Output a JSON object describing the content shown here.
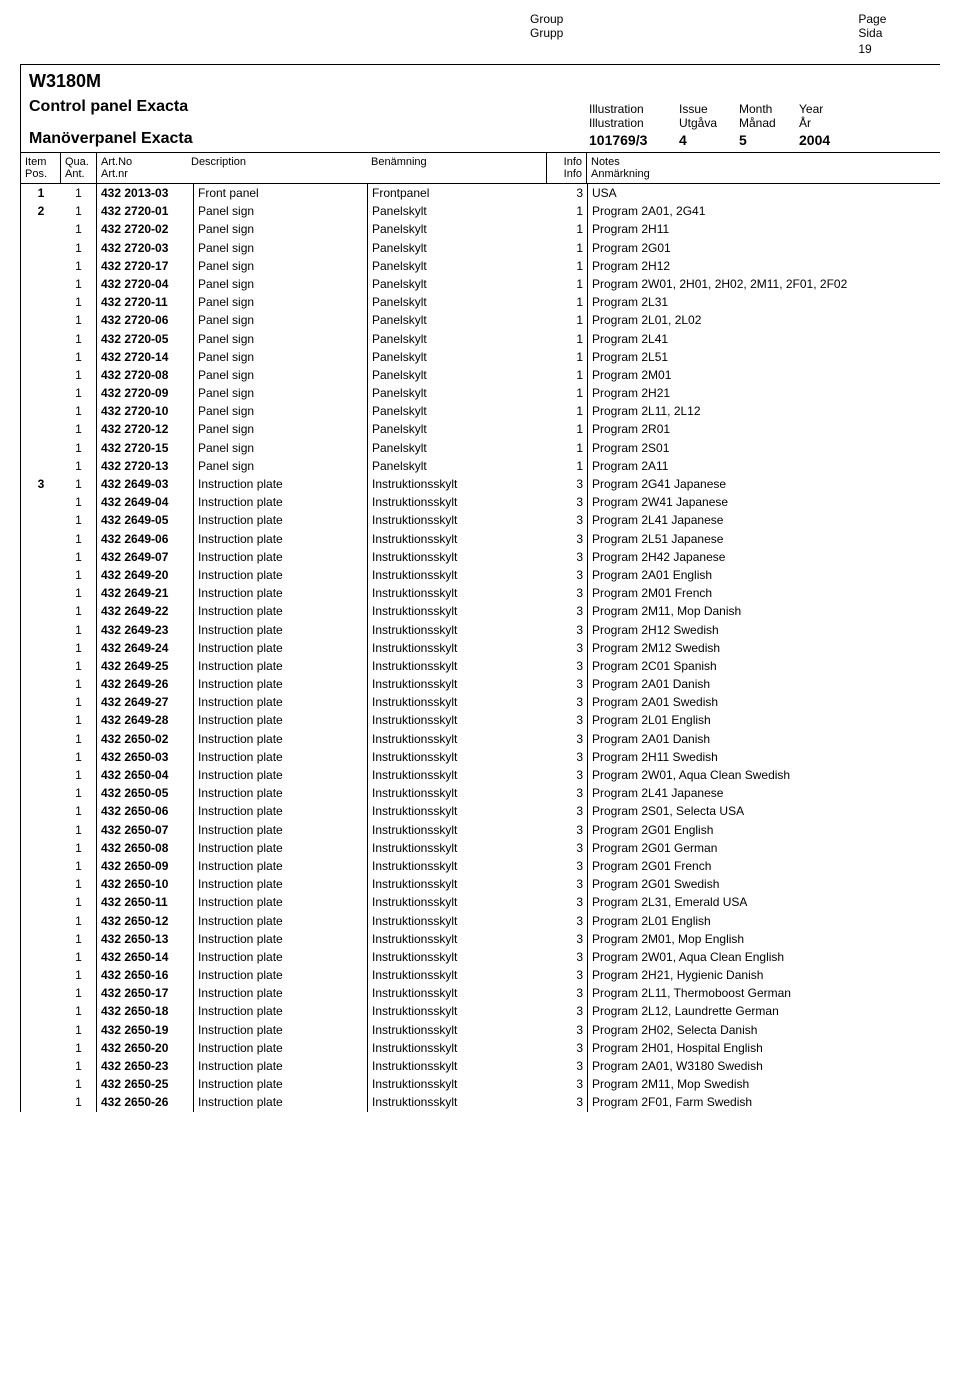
{
  "top": {
    "group_en": "Group",
    "group_sv": "Grupp",
    "page_en": "Page",
    "page_sv": "Sida",
    "page_num": "19"
  },
  "header": {
    "model": "W3180M",
    "title_en": "Control panel Exacta",
    "title_sv": "Manöverpanel Exacta",
    "meta_labels_en": {
      "illustration": "Illustration",
      "issue": "Issue",
      "month": "Month",
      "year": "Year"
    },
    "meta_labels_sv": {
      "illustration": "Illustration",
      "issue": "Utgåva",
      "month": "Månad",
      "year": "År"
    },
    "meta_values": {
      "illustration": "101769/3",
      "issue": "4",
      "month": "5",
      "year": "2004"
    }
  },
  "col_headers": {
    "item_en": "Item",
    "item_sv": "Pos.",
    "qty_en": "Qua.",
    "qty_sv": "Ant.",
    "art_en": "Art.No",
    "art_sv": "Art.nr",
    "desc": "Description",
    "ben": "Benämning",
    "info": "Info",
    "info2": "Info",
    "notes_en": "Notes",
    "notes_sv": "Anmärkning"
  },
  "rows": [
    {
      "item": "1",
      "qty": "1",
      "art": "432 2013-03",
      "desc": "Front panel",
      "ben": "Frontpanel",
      "info": "3",
      "notes": "USA"
    },
    {
      "item": "2",
      "qty": "1",
      "art": "432 2720-01",
      "desc": "Panel sign",
      "ben": "Panelskylt",
      "info": "1",
      "notes": "Program 2A01, 2G41"
    },
    {
      "item": "",
      "qty": "1",
      "art": "432 2720-02",
      "desc": "Panel sign",
      "ben": "Panelskylt",
      "info": "1",
      "notes": "Program 2H11"
    },
    {
      "item": "",
      "qty": "1",
      "art": "432 2720-03",
      "desc": "Panel sign",
      "ben": "Panelskylt",
      "info": "1",
      "notes": "Program 2G01"
    },
    {
      "item": "",
      "qty": "1",
      "art": "432 2720-17",
      "desc": "Panel sign",
      "ben": "Panelskylt",
      "info": "1",
      "notes": "Program 2H12"
    },
    {
      "item": "",
      "qty": "1",
      "art": "432 2720-04",
      "desc": "Panel sign",
      "ben": "Panelskylt",
      "info": "1",
      "notes": "Program 2W01, 2H01, 2H02, 2M11, 2F01, 2F02"
    },
    {
      "item": "",
      "qty": "1",
      "art": "432 2720-11",
      "desc": "Panel sign",
      "ben": "Panelskylt",
      "info": "1",
      "notes": "Program 2L31"
    },
    {
      "item": "",
      "qty": "1",
      "art": "432 2720-06",
      "desc": "Panel sign",
      "ben": "Panelskylt",
      "info": "1",
      "notes": "Program 2L01, 2L02"
    },
    {
      "item": "",
      "qty": "1",
      "art": "432 2720-05",
      "desc": "Panel sign",
      "ben": "Panelskylt",
      "info": "1",
      "notes": "Program 2L41"
    },
    {
      "item": "",
      "qty": "1",
      "art": "432 2720-14",
      "desc": "Panel sign",
      "ben": "Panelskylt",
      "info": "1",
      "notes": "Program 2L51"
    },
    {
      "item": "",
      "qty": "1",
      "art": "432 2720-08",
      "desc": "Panel sign",
      "ben": "Panelskylt",
      "info": "1",
      "notes": "Program 2M01"
    },
    {
      "item": "",
      "qty": "1",
      "art": "432 2720-09",
      "desc": "Panel sign",
      "ben": "Panelskylt",
      "info": "1",
      "notes": "Program 2H21"
    },
    {
      "item": "",
      "qty": "1",
      "art": "432 2720-10",
      "desc": "Panel sign",
      "ben": "Panelskylt",
      "info": "1",
      "notes": "Program 2L11, 2L12"
    },
    {
      "item": "",
      "qty": "1",
      "art": "432 2720-12",
      "desc": "Panel sign",
      "ben": "Panelskylt",
      "info": "1",
      "notes": "Program 2R01"
    },
    {
      "item": "",
      "qty": "1",
      "art": "432 2720-15",
      "desc": "Panel sign",
      "ben": "Panelskylt",
      "info": "1",
      "notes": "Program 2S01"
    },
    {
      "item": "",
      "qty": "1",
      "art": "432 2720-13",
      "desc": "Panel sign",
      "ben": "Panelskylt",
      "info": "1",
      "notes": "Program 2A11"
    },
    {
      "item": "3",
      "qty": "1",
      "art": "432 2649-03",
      "desc": "Instruction plate",
      "ben": "Instruktionsskylt",
      "info": "3",
      "notes": "Program 2G41 Japanese"
    },
    {
      "item": "",
      "qty": "1",
      "art": "432 2649-04",
      "desc": "Instruction plate",
      "ben": "Instruktionsskylt",
      "info": "3",
      "notes": "Program 2W41 Japanese"
    },
    {
      "item": "",
      "qty": "1",
      "art": "432 2649-05",
      "desc": "Instruction plate",
      "ben": "Instruktionsskylt",
      "info": "3",
      "notes": "Program 2L41 Japanese"
    },
    {
      "item": "",
      "qty": "1",
      "art": "432 2649-06",
      "desc": "Instruction plate",
      "ben": "Instruktionsskylt",
      "info": "3",
      "notes": "Program 2L51 Japanese"
    },
    {
      "item": "",
      "qty": "1",
      "art": "432 2649-07",
      "desc": "Instruction plate",
      "ben": "Instruktionsskylt",
      "info": "3",
      "notes": "Program 2H42 Japanese"
    },
    {
      "item": "",
      "qty": "1",
      "art": "432 2649-20",
      "desc": "Instruction plate",
      "ben": "Instruktionsskylt",
      "info": "3",
      "notes": "Program 2A01 English"
    },
    {
      "item": "",
      "qty": "1",
      "art": "432 2649-21",
      "desc": "Instruction plate",
      "ben": "Instruktionsskylt",
      "info": "3",
      "notes": "Program 2M01 French"
    },
    {
      "item": "",
      "qty": "1",
      "art": "432 2649-22",
      "desc": "Instruction plate",
      "ben": "Instruktionsskylt",
      "info": "3",
      "notes": "Program 2M11, Mop Danish"
    },
    {
      "item": "",
      "qty": "1",
      "art": "432 2649-23",
      "desc": "Instruction plate",
      "ben": "Instruktionsskylt",
      "info": "3",
      "notes": "Program 2H12 Swedish"
    },
    {
      "item": "",
      "qty": "1",
      "art": "432 2649-24",
      "desc": "Instruction plate",
      "ben": "Instruktionsskylt",
      "info": "3",
      "notes": "Program 2M12 Swedish"
    },
    {
      "item": "",
      "qty": "1",
      "art": "432 2649-25",
      "desc": "Instruction plate",
      "ben": "Instruktionsskylt",
      "info": "3",
      "notes": "Program 2C01 Spanish"
    },
    {
      "item": "",
      "qty": "1",
      "art": "432 2649-26",
      "desc": "Instruction plate",
      "ben": "Instruktionsskylt",
      "info": "3",
      "notes": "Program 2A01 Danish"
    },
    {
      "item": "",
      "qty": "1",
      "art": "432 2649-27",
      "desc": "Instruction plate",
      "ben": "Instruktionsskylt",
      "info": "3",
      "notes": "Program 2A01 Swedish"
    },
    {
      "item": "",
      "qty": "1",
      "art": "432 2649-28",
      "desc": "Instruction plate",
      "ben": "Instruktionsskylt",
      "info": "3",
      "notes": "Program 2L01 English"
    },
    {
      "item": "",
      "qty": "1",
      "art": "432 2650-02",
      "desc": "Instruction plate",
      "ben": "Instruktionsskylt",
      "info": "3",
      "notes": "Program 2A01 Danish"
    },
    {
      "item": "",
      "qty": "1",
      "art": "432 2650-03",
      "desc": "Instruction plate",
      "ben": "Instruktionsskylt",
      "info": "3",
      "notes": "Program 2H11 Swedish"
    },
    {
      "item": "",
      "qty": "1",
      "art": "432 2650-04",
      "desc": "Instruction plate",
      "ben": "Instruktionsskylt",
      "info": "3",
      "notes": "Program 2W01, Aqua Clean Swedish"
    },
    {
      "item": "",
      "qty": "1",
      "art": "432 2650-05",
      "desc": "Instruction plate",
      "ben": "Instruktionsskylt",
      "info": "3",
      "notes": "Program 2L41 Japanese"
    },
    {
      "item": "",
      "qty": "1",
      "art": "432 2650-06",
      "desc": "Instruction plate",
      "ben": "Instruktionsskylt",
      "info": "3",
      "notes": "Program 2S01, Selecta USA"
    },
    {
      "item": "",
      "qty": "1",
      "art": "432 2650-07",
      "desc": "Instruction plate",
      "ben": "Instruktionsskylt",
      "info": "3",
      "notes": "Program 2G01 English"
    },
    {
      "item": "",
      "qty": "1",
      "art": "432 2650-08",
      "desc": "Instruction plate",
      "ben": "Instruktionsskylt",
      "info": "3",
      "notes": "Program 2G01 German"
    },
    {
      "item": "",
      "qty": "1",
      "art": "432 2650-09",
      "desc": "Instruction plate",
      "ben": "Instruktionsskylt",
      "info": "3",
      "notes": "Program 2G01 French"
    },
    {
      "item": "",
      "qty": "1",
      "art": "432 2650-10",
      "desc": "Instruction plate",
      "ben": "Instruktionsskylt",
      "info": "3",
      "notes": "Program 2G01 Swedish"
    },
    {
      "item": "",
      "qty": "1",
      "art": "432 2650-11",
      "desc": "Instruction plate",
      "ben": "Instruktionsskylt",
      "info": "3",
      "notes": "Program 2L31, Emerald USA"
    },
    {
      "item": "",
      "qty": "1",
      "art": "432 2650-12",
      "desc": "Instruction plate",
      "ben": "Instruktionsskylt",
      "info": "3",
      "notes": "Program 2L01 English"
    },
    {
      "item": "",
      "qty": "1",
      "art": "432 2650-13",
      "desc": "Instruction plate",
      "ben": "Instruktionsskylt",
      "info": "3",
      "notes": "Program 2M01, Mop English"
    },
    {
      "item": "",
      "qty": "1",
      "art": "432 2650-14",
      "desc": "Instruction plate",
      "ben": "Instruktionsskylt",
      "info": "3",
      "notes": "Program 2W01, Aqua Clean English"
    },
    {
      "item": "",
      "qty": "1",
      "art": "432 2650-16",
      "desc": "Instruction plate",
      "ben": "Instruktionsskylt",
      "info": "3",
      "notes": "Program 2H21, Hygienic Danish"
    },
    {
      "item": "",
      "qty": "1",
      "art": "432 2650-17",
      "desc": "Instruction plate",
      "ben": "Instruktionsskylt",
      "info": "3",
      "notes": "Program 2L11, Thermoboost German"
    },
    {
      "item": "",
      "qty": "1",
      "art": "432 2650-18",
      "desc": "Instruction plate",
      "ben": "Instruktionsskylt",
      "info": "3",
      "notes": "Program 2L12, Laundrette German"
    },
    {
      "item": "",
      "qty": "1",
      "art": "432 2650-19",
      "desc": "Instruction plate",
      "ben": "Instruktionsskylt",
      "info": "3",
      "notes": "Program 2H02, Selecta Danish"
    },
    {
      "item": "",
      "qty": "1",
      "art": "432 2650-20",
      "desc": "Instruction plate",
      "ben": "Instruktionsskylt",
      "info": "3",
      "notes": "Program 2H01, Hospital English"
    },
    {
      "item": "",
      "qty": "1",
      "art": "432 2650-23",
      "desc": "Instruction plate",
      "ben": "Instruktionsskylt",
      "info": "3",
      "notes": "Program 2A01, W3180 Swedish"
    },
    {
      "item": "",
      "qty": "1",
      "art": "432 2650-25",
      "desc": "Instruction plate",
      "ben": "Instruktionsskylt",
      "info": "3",
      "notes": "Program 2M11, Mop Swedish"
    },
    {
      "item": "",
      "qty": "1",
      "art": "432 2650-26",
      "desc": "Instruction plate",
      "ben": "Instruktionsskylt",
      "info": "3",
      "notes": "Program 2F01, Farm Swedish"
    }
  ]
}
